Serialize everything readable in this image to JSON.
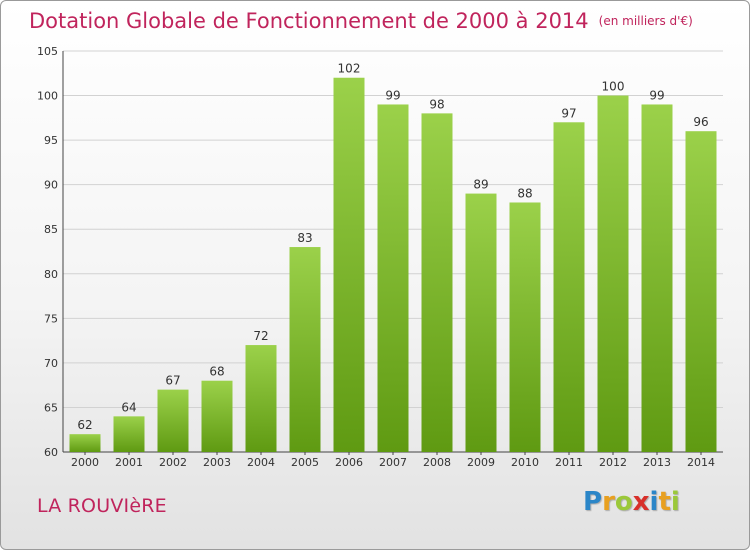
{
  "title": "Dotation Globale de Fonctionnement de 2000 à 2014",
  "unit": "(en milliers d'€)",
  "commune": "LA ROUVIèRE",
  "logo": {
    "letters": [
      "P",
      "r",
      "o",
      "x",
      "i",
      "t",
      "i"
    ],
    "colors": [
      "#2b86c8",
      "#e8a020",
      "#9bc83a",
      "#d8302a",
      "#2b86c8",
      "#e8a020",
      "#9bc83a"
    ]
  },
  "colors": {
    "bar_light": "#9bd14a",
    "bar_dark": "#5f9a12",
    "title": "#c0245c"
  },
  "chart_data": {
    "type": "bar",
    "categories": [
      "2000",
      "2001",
      "2002",
      "2003",
      "2004",
      "2005",
      "2006",
      "2007",
      "2008",
      "2009",
      "2010",
      "2011",
      "2012",
      "2013",
      "2014"
    ],
    "values": [
      62,
      64,
      67,
      68,
      72,
      83,
      102,
      99,
      98,
      89,
      88,
      97,
      100,
      99,
      96
    ],
    "ylim": [
      60,
      105
    ],
    "yticks": [
      60,
      65,
      70,
      75,
      80,
      85,
      90,
      95,
      100,
      105
    ],
    "grid": true
  }
}
